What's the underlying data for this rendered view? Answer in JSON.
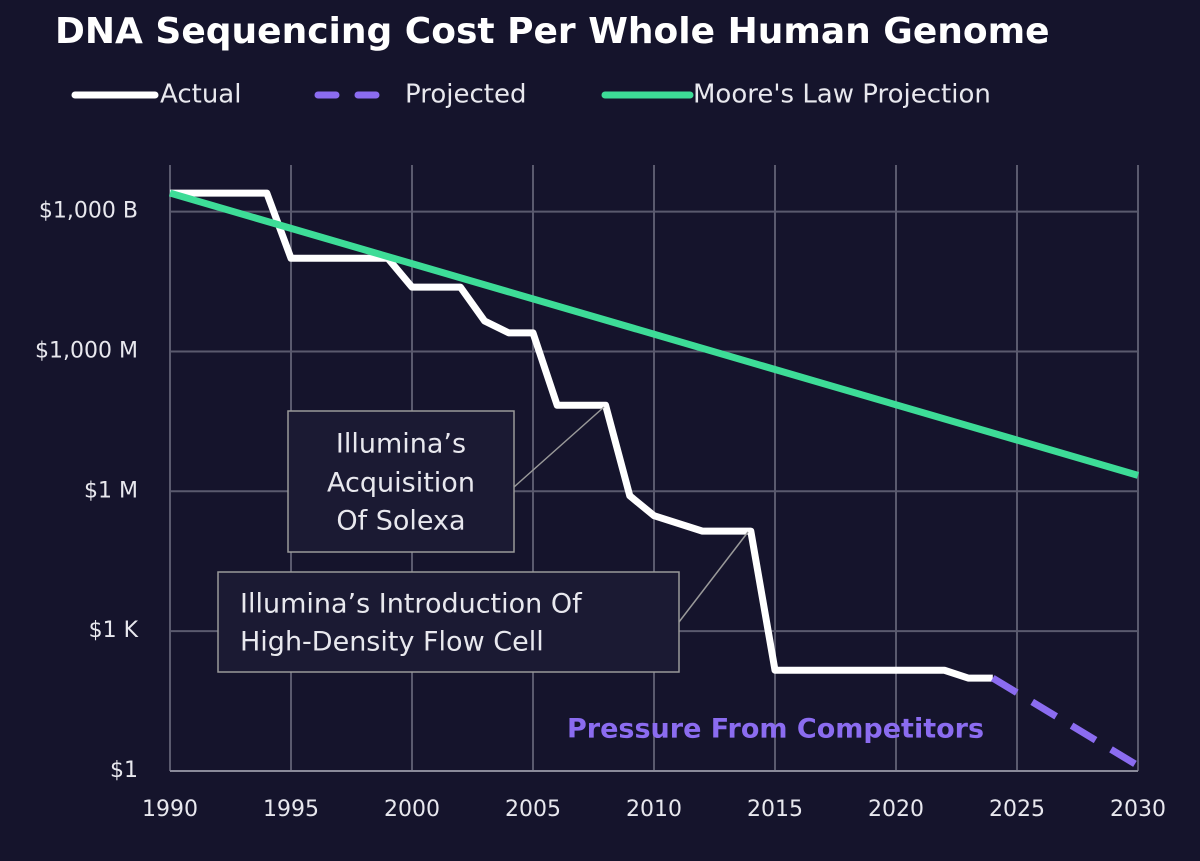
{
  "chart_data": {
    "type": "line",
    "title": "DNA Sequencing Cost Per Whole Human Genome",
    "log_scale_y": true,
    "grid": true,
    "legend": "top",
    "series": [
      {
        "name": "Actual",
        "color": "#ffffff",
        "style": "solid",
        "x": [
          1990,
          1994,
          1995,
          1999,
          2000,
          2002,
          2003,
          2004,
          2005,
          2006,
          2008,
          2009,
          2010,
          2012,
          2014,
          2015,
          2022,
          2023,
          2024
        ],
        "values": [
          2500000000000.0,
          2500000000000.0,
          100000000000.0,
          100000000000.0,
          24000000000.0,
          24000000000.0,
          4500000000.0,
          2500000000.0,
          2500000000.0,
          70000000.0,
          70000000.0,
          800000.0,
          300000.0,
          140000.0,
          140000.0,
          145,
          145,
          98,
          98
        ]
      },
      {
        "name": "Projected",
        "color": "#8b6cf0",
        "style": "dashed",
        "x": [
          2024,
          2030
        ],
        "values": [
          98,
          1.3
        ]
      },
      {
        "name": "Moore's Law Projection",
        "color": "#3ddc97",
        "style": "solid",
        "x": [
          1990,
          2030
        ],
        "values": [
          2500000000000.0,
          2200000.0
        ]
      }
    ],
    "xlim": [
      1990,
      2030
    ],
    "xticks": [
      1990,
      1995,
      2000,
      2005,
      2010,
      2015,
      2020,
      2025,
      2030
    ],
    "ylim": [
      1,
      10000000000000.0
    ],
    "yticks": [
      {
        "value": 1,
        "label": "$1"
      },
      {
        "value": 1000,
        "label": "$1 K"
      },
      {
        "value": 1000000,
        "label": "$1 M"
      },
      {
        "value": 1000000000,
        "label": "$1,000 M"
      },
      {
        "value": 1000000000000,
        "label": "$1,000 B"
      }
    ],
    "annotations": [
      {
        "lines": [
          "Illumina’s",
          "Acquisition",
          "Of Solexa"
        ]
      },
      {
        "lines": [
          "Illumina’s Introduction Of",
          "High-Density Flow Cell"
        ]
      },
      {
        "text": "Pressure From Competitors"
      }
    ]
  }
}
